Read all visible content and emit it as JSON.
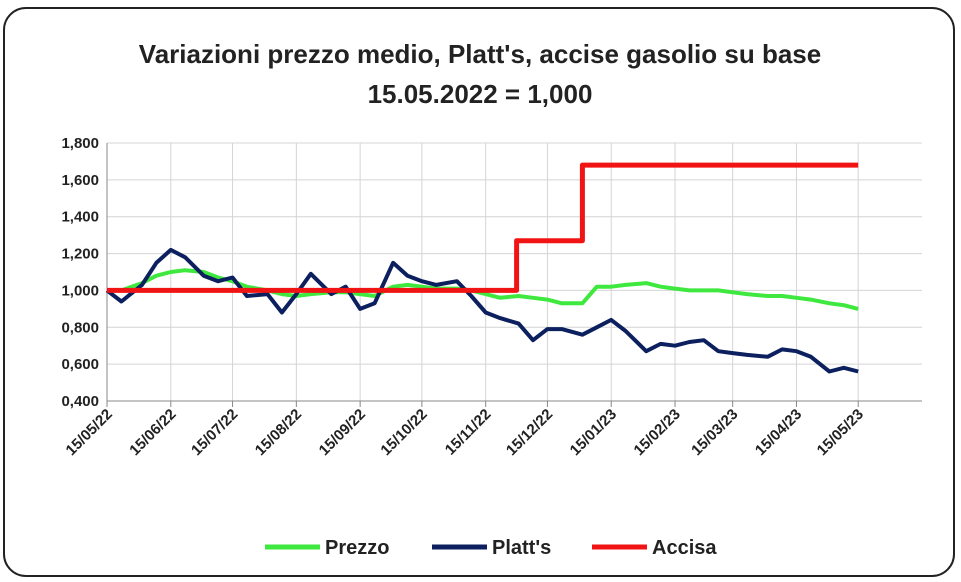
{
  "chart_data": {
    "type": "line",
    "title": "Variazioni prezzo medio, Platt's, accise gasolio su base 15.05.2022 = 1,000",
    "x": [
      "2022-05-15",
      "2022-05-22",
      "2022-06-01",
      "2022-06-08",
      "2022-06-15",
      "2022-06-22",
      "2022-07-01",
      "2022-07-08",
      "2022-07-15",
      "2022-07-22",
      "2022-08-01",
      "2022-08-08",
      "2022-08-15",
      "2022-08-22",
      "2022-09-01",
      "2022-09-08",
      "2022-09-15",
      "2022-09-22",
      "2022-10-01",
      "2022-10-08",
      "2022-10-15",
      "2022-10-22",
      "2022-11-01",
      "2022-11-08",
      "2022-11-15",
      "2022-11-22",
      "2022-12-01",
      "2022-12-08",
      "2022-12-15",
      "2022-12-22",
      "2023-01-01",
      "2023-01-08",
      "2023-01-15",
      "2023-01-22",
      "2023-02-01",
      "2023-02-08",
      "2023-02-15",
      "2023-02-22",
      "2023-03-01",
      "2023-03-08",
      "2023-03-15",
      "2023-03-22",
      "2023-04-01",
      "2023-04-08",
      "2023-04-15",
      "2023-04-22",
      "2023-05-01",
      "2023-05-08",
      "2023-05-15"
    ],
    "series": [
      {
        "name": "Prezzo",
        "color": "#3ee83e",
        "values": [
          1.0,
          1.0,
          1.04,
          1.08,
          1.1,
          1.11,
          1.1,
          1.07,
          1.05,
          1.02,
          1.0,
          0.98,
          0.97,
          0.98,
          0.99,
          0.99,
          0.98,
          0.97,
          1.02,
          1.03,
          1.02,
          1.01,
          1.01,
          1.0,
          0.98,
          0.96,
          0.97,
          0.96,
          0.95,
          0.93,
          0.93,
          1.02,
          1.02,
          1.03,
          1.04,
          1.02,
          1.01,
          1.0,
          1.0,
          1.0,
          0.99,
          0.98,
          0.97,
          0.97,
          0.96,
          0.95,
          0.93,
          0.92,
          0.9
        ]
      },
      {
        "name": "Platt's",
        "color": "#0c1f5e",
        "values": [
          1.0,
          0.94,
          1.03,
          1.15,
          1.22,
          1.18,
          1.08,
          1.05,
          1.07,
          0.97,
          0.98,
          0.88,
          0.98,
          1.09,
          0.98,
          1.02,
          0.9,
          0.93,
          1.15,
          1.08,
          1.05,
          1.03,
          1.05,
          0.97,
          0.88,
          0.85,
          0.82,
          0.73,
          0.79,
          0.79,
          0.76,
          0.8,
          0.84,
          0.78,
          0.67,
          0.71,
          0.7,
          0.72,
          0.73,
          0.67,
          0.66,
          0.65,
          0.64,
          0.68,
          0.67,
          0.64,
          0.56,
          0.58,
          0.56
        ]
      },
      {
        "name": "Accisa",
        "color": "#f01414",
        "x": [
          "2022-05-15",
          "2022-11-30",
          "2022-11-30",
          "2023-01-01",
          "2023-01-01",
          "2023-05-15"
        ],
        "values": [
          1.0,
          1.0,
          1.27,
          1.27,
          1.68,
          1.68
        ]
      }
    ],
    "xlim": [
      "2022-05-15",
      "2023-06-15"
    ],
    "xticks": [
      {
        "value": "2022-05-15",
        "label": "15/05/22"
      },
      {
        "value": "2022-06-15",
        "label": "15/06/22"
      },
      {
        "value": "2022-07-15",
        "label": "15/07/22"
      },
      {
        "value": "2022-08-15",
        "label": "15/08/22"
      },
      {
        "value": "2022-09-15",
        "label": "15/09/22"
      },
      {
        "value": "2022-10-15",
        "label": "15/10/22"
      },
      {
        "value": "2022-11-15",
        "label": "15/11/22"
      },
      {
        "value": "2022-12-15",
        "label": "15/12/22"
      },
      {
        "value": "2023-01-15",
        "label": "15/01/23"
      },
      {
        "value": "2023-02-15",
        "label": "15/02/23"
      },
      {
        "value": "2023-03-15",
        "label": "15/03/23"
      },
      {
        "value": "2023-04-15",
        "label": "15/04/23"
      },
      {
        "value": "2023-05-15",
        "label": "15/05/23"
      }
    ],
    "ylim": [
      0.4,
      1.8
    ],
    "yticks": [
      {
        "value": 0.4,
        "label": "0,400"
      },
      {
        "value": 0.6,
        "label": "0,600"
      },
      {
        "value": 0.8,
        "label": "0,800"
      },
      {
        "value": 1.0,
        "label": "1,000"
      },
      {
        "value": 1.2,
        "label": "1,200"
      },
      {
        "value": 1.4,
        "label": "1,400"
      },
      {
        "value": 1.6,
        "label": "1,600"
      },
      {
        "value": 1.8,
        "label": "1,800"
      }
    ],
    "grid": true,
    "legend": "bottom"
  }
}
